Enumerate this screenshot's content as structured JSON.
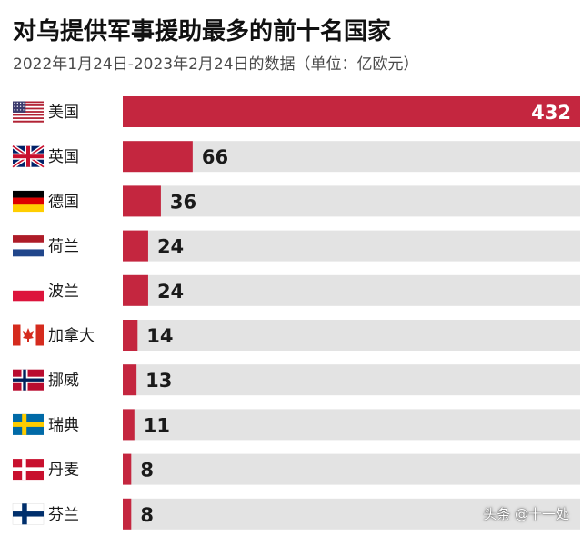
{
  "header": {
    "title": "对乌提供军事援助最多的前十名国家",
    "subtitle": "2022年1月24日-2023年2月24日的数据（单位：亿欧元）"
  },
  "watermark": "头条 @十一处",
  "colors": {
    "bar": "#c4263f",
    "track": "#e3e3e3",
    "value_text": "#1a1a1a",
    "value_text_inside": "#ffffff"
  },
  "chart_data": {
    "type": "bar",
    "orientation": "horizontal",
    "categories": [
      "美国",
      "英国",
      "德国",
      "荷兰",
      "波兰",
      "加拿大",
      "挪威",
      "瑞典",
      "丹麦",
      "芬兰"
    ],
    "flags": [
      "us-flag-icon",
      "uk-flag-icon",
      "germany-flag-icon",
      "netherlands-flag-icon",
      "poland-flag-icon",
      "canada-flag-icon",
      "norway-flag-icon",
      "sweden-flag-icon",
      "denmark-flag-icon",
      "finland-flag-icon"
    ],
    "values": [
      432,
      66,
      36,
      24,
      24,
      14,
      13,
      11,
      8,
      8
    ],
    "xlim": [
      0,
      432
    ],
    "grid": false,
    "legend": "none"
  }
}
